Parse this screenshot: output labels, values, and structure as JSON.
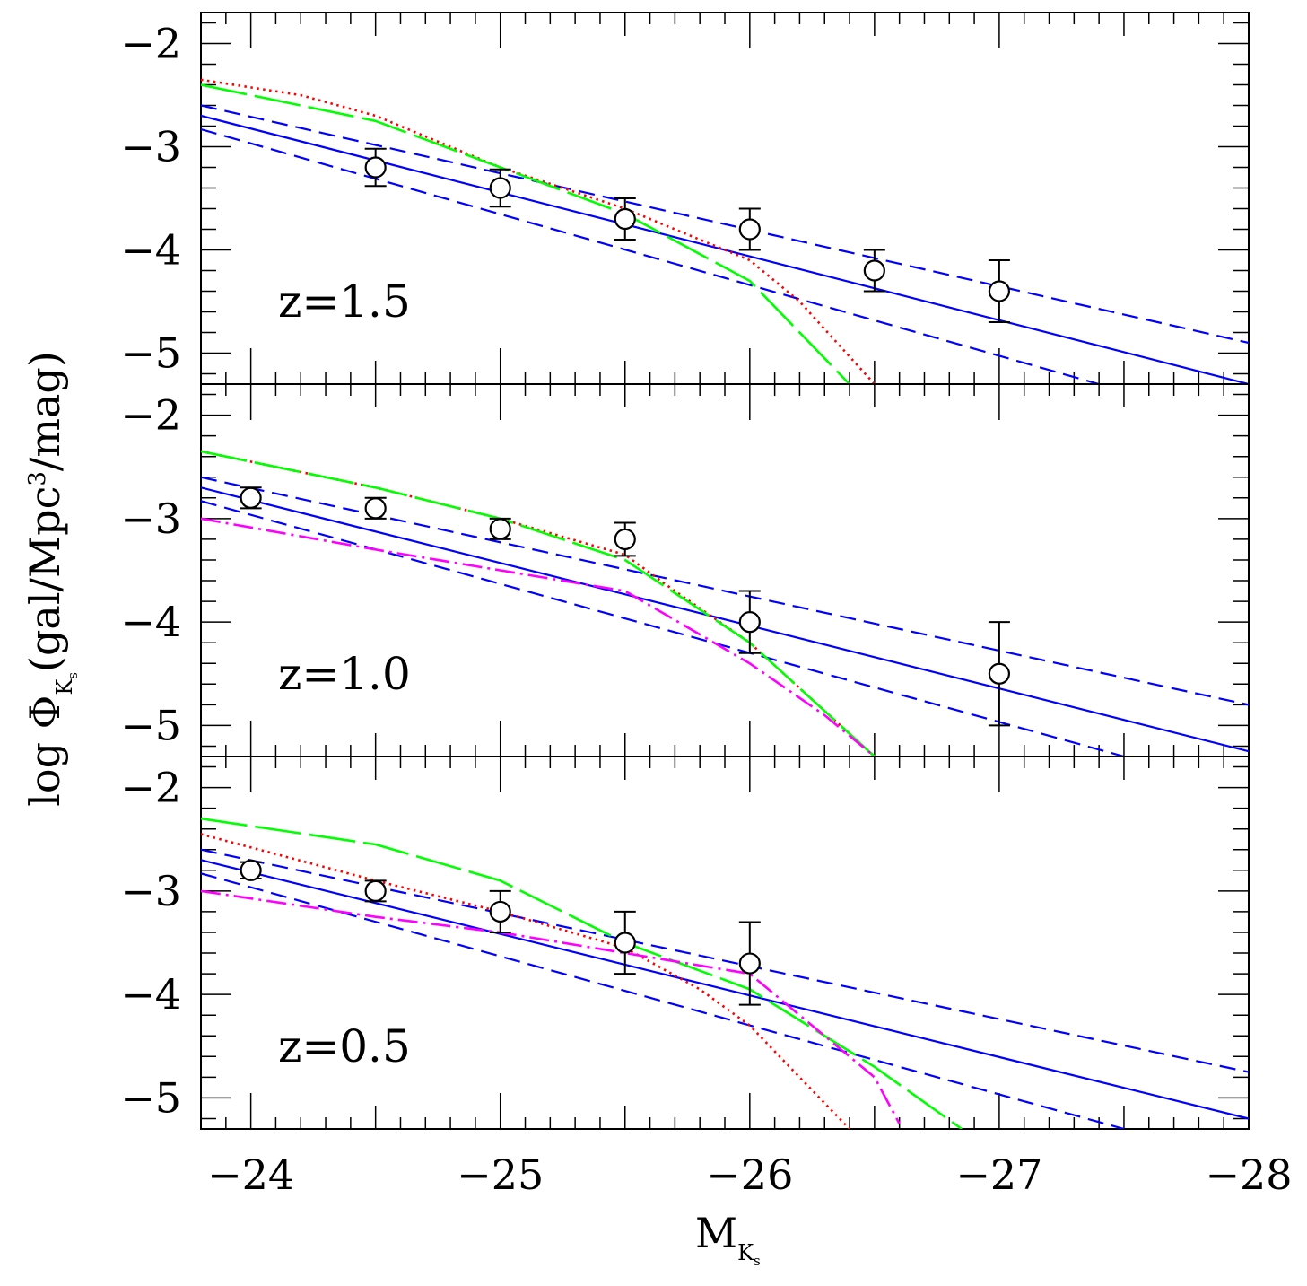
{
  "chart_data": {
    "type": "line",
    "xlabel": "M",
    "xlabel_sub": "K",
    "xlabel_subsub": "s",
    "ylabel_pre": "log  Φ",
    "ylabel_sub": "K",
    "ylabel_subsub": "s",
    "ylabel_post": "(gal/Mpc",
    "ylabel_sup": "3",
    "ylabel_end": "/mag)",
    "xlim": [
      -23.8,
      -28
    ],
    "x_ticks": [
      -24,
      -25,
      -26,
      -27,
      -28
    ],
    "x_tick_labels": [
      "−24",
      "−25",
      "−26",
      "−27",
      "−28"
    ],
    "ylim": [
      -5.3,
      -1.7
    ],
    "y_ticks": [
      -2,
      -3,
      -4,
      -5
    ],
    "y_tick_labels": [
      "−2",
      "−3",
      "−4",
      "−5"
    ],
    "colors": {
      "data": "#000000",
      "fit": "#0000ff",
      "model_red": "#ff0000",
      "model_green": "#00ff00",
      "model_magenta": "#ff00ff"
    },
    "panels": [
      {
        "label": "z=1.5",
        "points": [
          {
            "x": -24.5,
            "y": -3.2,
            "err": 0.18
          },
          {
            "x": -25.0,
            "y": -3.4,
            "err": 0.18
          },
          {
            "x": -25.5,
            "y": -3.7,
            "err": 0.2
          },
          {
            "x": -26.0,
            "y": -3.8,
            "err": 0.2
          },
          {
            "x": -26.5,
            "y": -4.2,
            "err": 0.2
          },
          {
            "x": -27.0,
            "y": -4.4,
            "err": 0.3
          }
        ],
        "series": [
          {
            "style": "fit",
            "x": [
              -23.8,
              -28.0
            ],
            "y": [
              -2.7,
              -5.3
            ]
          },
          {
            "style": "fit-bound",
            "x": [
              -23.8,
              -28.0
            ],
            "y": [
              -2.6,
              -4.9
            ]
          },
          {
            "style": "fit-bound",
            "x": [
              -23.8,
              -27.4
            ],
            "y": [
              -2.83,
              -5.3
            ]
          },
          {
            "style": "red-dotted",
            "x": [
              -23.8,
              -24.2,
              -24.5,
              -25.0,
              -25.5,
              -25.8,
              -26.0,
              -26.2,
              -26.5
            ],
            "y": [
              -2.35,
              -2.5,
              -2.7,
              -3.2,
              -3.6,
              -3.9,
              -4.1,
              -4.5,
              -5.3
            ]
          },
          {
            "style": "green-longdash",
            "x": [
              -23.8,
              -24.5,
              -25.0,
              -25.5,
              -26.0,
              -26.2,
              -26.4
            ],
            "y": [
              -2.4,
              -2.75,
              -3.2,
              -3.65,
              -4.3,
              -4.8,
              -5.3
            ]
          }
        ]
      },
      {
        "label": "z=1.0",
        "points": [
          {
            "x": -24.0,
            "y": -2.8,
            "err": 0.1
          },
          {
            "x": -24.5,
            "y": -2.9,
            "err": 0.1
          },
          {
            "x": -25.0,
            "y": -3.1,
            "err": 0.1
          },
          {
            "x": -25.5,
            "y": -3.2,
            "err": 0.16
          },
          {
            "x": -26.0,
            "y": -4.0,
            "err": 0.3
          },
          {
            "x": -27.0,
            "y": -4.5,
            "err": 0.5
          }
        ],
        "series": [
          {
            "style": "fit",
            "x": [
              -23.8,
              -28.0
            ],
            "y": [
              -2.7,
              -5.25
            ]
          },
          {
            "style": "fit-bound",
            "x": [
              -23.8,
              -28.0
            ],
            "y": [
              -2.6,
              -4.8
            ]
          },
          {
            "style": "fit-bound",
            "x": [
              -23.8,
              -27.5
            ],
            "y": [
              -2.83,
              -5.3
            ]
          },
          {
            "style": "red-dotted",
            "x": [
              -23.8,
              -24.5,
              -25.0,
              -25.5,
              -25.7,
              -26.0,
              -26.5
            ],
            "y": [
              -2.35,
              -2.7,
              -3.0,
              -3.35,
              -3.7,
              -4.2,
              -5.3
            ]
          },
          {
            "style": "green-longdash",
            "x": [
              -23.8,
              -24.5,
              -25.0,
              -25.5,
              -26.0,
              -26.5
            ],
            "y": [
              -2.35,
              -2.7,
              -3.0,
              -3.4,
              -4.2,
              -5.3
            ]
          },
          {
            "style": "magenta-dashdot",
            "x": [
              -23.8,
              -24.5,
              -25.0,
              -25.5,
              -26.0,
              -26.3,
              -26.5
            ],
            "y": [
              -3.0,
              -3.3,
              -3.5,
              -3.7,
              -4.4,
              -4.9,
              -5.3
            ]
          }
        ]
      },
      {
        "label": "z=0.5",
        "points": [
          {
            "x": -24.0,
            "y": -2.8,
            "err": 0.08
          },
          {
            "x": -24.5,
            "y": -3.0,
            "err": 0.1
          },
          {
            "x": -25.0,
            "y": -3.2,
            "err": 0.2
          },
          {
            "x": -25.5,
            "y": -3.5,
            "err": 0.3
          },
          {
            "x": -26.0,
            "y": -3.7,
            "err": 0.4
          }
        ],
        "series": [
          {
            "style": "fit",
            "x": [
              -23.8,
              -28.0
            ],
            "y": [
              -2.7,
              -5.2
            ]
          },
          {
            "style": "fit-bound",
            "x": [
              -23.8,
              -28.0
            ],
            "y": [
              -2.6,
              -4.75
            ]
          },
          {
            "style": "fit-bound",
            "x": [
              -23.8,
              -27.5
            ],
            "y": [
              -2.83,
              -5.3
            ]
          },
          {
            "style": "red-dotted",
            "x": [
              -23.8,
              -24.5,
              -25.0,
              -25.5,
              -25.8,
              -26.0,
              -26.2,
              -26.4
            ],
            "y": [
              -2.45,
              -2.9,
              -3.2,
              -3.55,
              -3.95,
              -4.3,
              -4.8,
              -5.3
            ]
          },
          {
            "style": "green-longdash",
            "x": [
              -23.8,
              -24.5,
              -25.0,
              -25.5,
              -26.0,
              -26.5,
              -26.85
            ],
            "y": [
              -2.3,
              -2.55,
              -2.9,
              -3.5,
              -3.95,
              -4.7,
              -5.3
            ]
          },
          {
            "style": "magenta-dashdot",
            "x": [
              -23.8,
              -24.5,
              -25.0,
              -25.5,
              -26.0,
              -26.3,
              -26.5,
              -26.6
            ],
            "y": [
              -3.0,
              -3.25,
              -3.4,
              -3.6,
              -3.8,
              -4.4,
              -4.8,
              -5.25
            ]
          }
        ]
      }
    ]
  }
}
